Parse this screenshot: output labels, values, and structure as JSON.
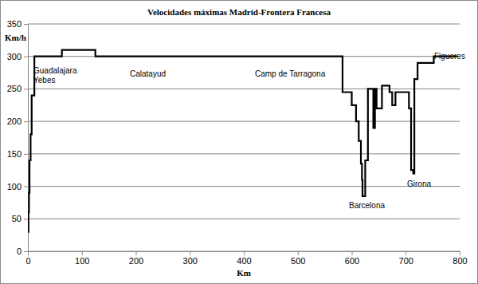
{
  "chart_data": {
    "type": "line",
    "title": "Velocidades máximas Madrid-Frontera Francesa",
    "x_label": "Km",
    "y_label": "Km/h",
    "x": [
      0,
      1,
      2,
      3,
      5,
      7,
      12,
      63,
      125,
      583,
      600,
      608,
      613,
      617,
      619,
      620,
      625,
      630,
      640,
      643,
      646,
      656,
      670,
      675,
      681,
      706,
      710,
      714,
      716,
      722,
      752,
      795
    ],
    "values": [
      30,
      60,
      90,
      140,
      180,
      240,
      300,
      310,
      300,
      245,
      225,
      200,
      170,
      135,
      110,
      85,
      140,
      250,
      190,
      250,
      220,
      255,
      245,
      225,
      245,
      220,
      125,
      120,
      265,
      290,
      300,
      300
    ],
    "color": "#000000",
    "line_style": "step",
    "xlim": [
      0,
      800
    ],
    "ylim": [
      0,
      350
    ],
    "xticks": [
      0,
      100,
      200,
      300,
      400,
      500,
      600,
      700,
      800
    ],
    "yticks": [
      0,
      50,
      100,
      150,
      200,
      250,
      300,
      350
    ],
    "grid": true,
    "annotations": [
      "Guadalajara",
      "Yebes",
      "Calatayud",
      "Camp de Tarragona",
      "Barcelona",
      "Girona",
      "Figueres"
    ]
  }
}
